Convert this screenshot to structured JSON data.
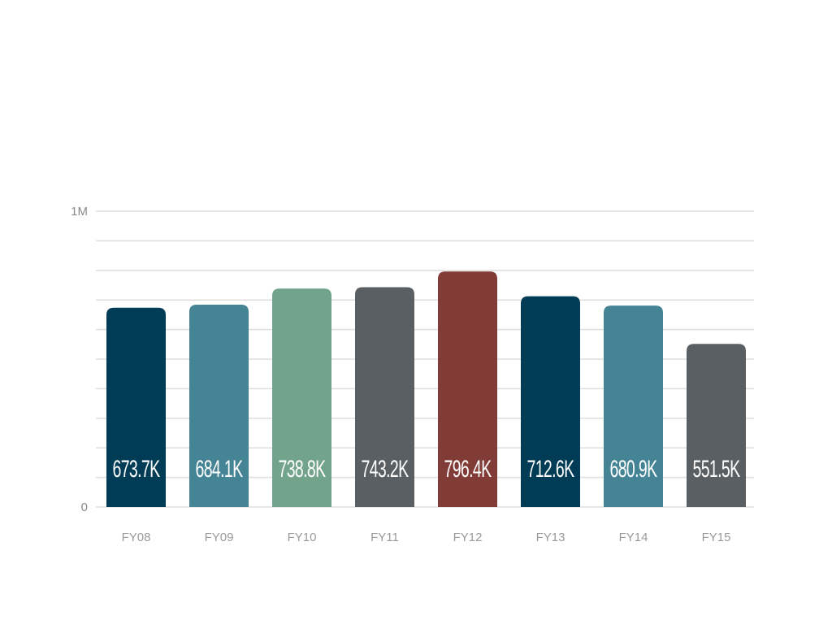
{
  "chart_data": {
    "type": "bar",
    "categories": [
      "FY08",
      "FY09",
      "FY10",
      "FY11",
      "FY12",
      "FY13",
      "FY14",
      "FY15"
    ],
    "values": [
      673700,
      684100,
      738800,
      743200,
      796400,
      712600,
      680900,
      551500
    ],
    "data_labels": [
      "673.7K",
      "684.1K",
      "738.8K",
      "743.2K",
      "796.4K",
      "712.6K",
      "680.9K",
      "551.5K"
    ],
    "bar_colors": [
      "#003c55",
      "#448495",
      "#72a38b",
      "#5a5f63",
      "#823c37",
      "#003c55",
      "#448495",
      "#5a5f63"
    ],
    "y_ticks": [
      {
        "value": 0,
        "label": "0"
      },
      {
        "value": 1000000,
        "label": "1M"
      }
    ],
    "ylim": [
      0,
      1000000
    ],
    "gridline_step": 100000,
    "grid": true,
    "legend": "none",
    "title": "",
    "xlabel": "",
    "ylabel": ""
  }
}
